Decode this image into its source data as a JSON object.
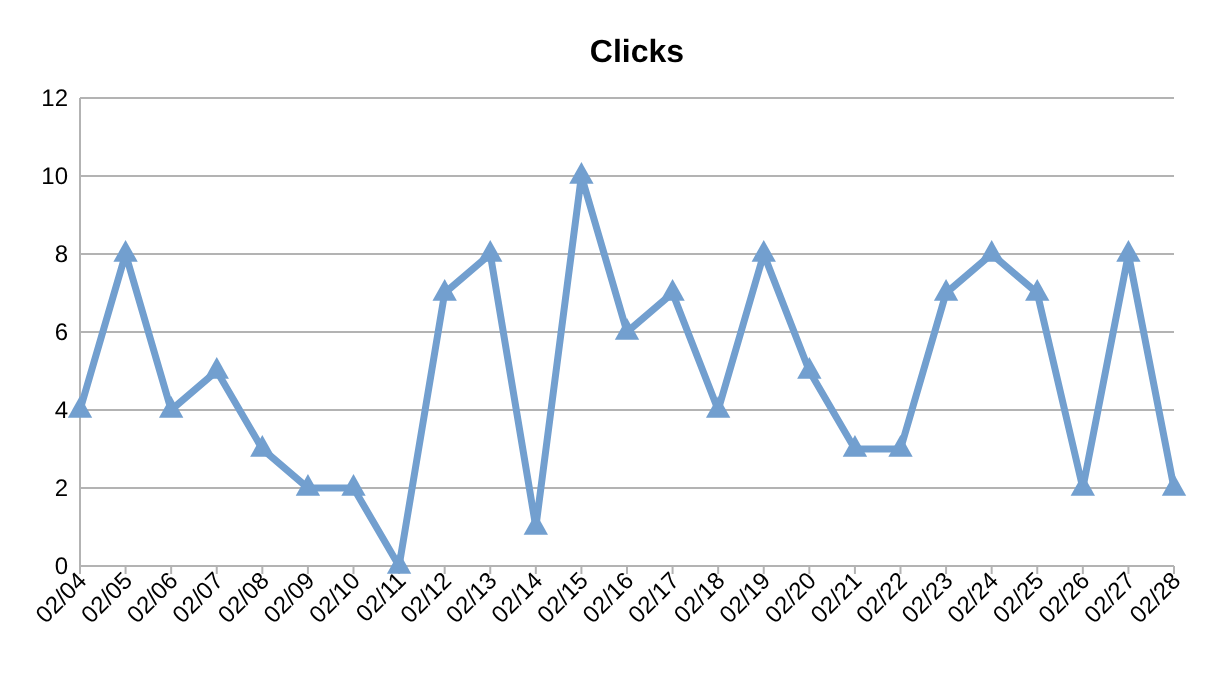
{
  "chart_data": {
    "type": "line",
    "title": "Clicks",
    "categories": [
      "02/04",
      "02/05",
      "02/06",
      "02/07",
      "02/08",
      "02/09",
      "02/10",
      "02/11",
      "02/12",
      "02/13",
      "02/14",
      "02/15",
      "02/16",
      "02/17",
      "02/18",
      "02/19",
      "02/20",
      "02/21",
      "02/22",
      "02/23",
      "02/24",
      "02/25",
      "02/26",
      "02/27",
      "02/28"
    ],
    "values": [
      4,
      8,
      4,
      5,
      3,
      2,
      2,
      0,
      7,
      8,
      1,
      10,
      6,
      7,
      4,
      8,
      5,
      3,
      3,
      7,
      8,
      7,
      2,
      8,
      2
    ],
    "color": "#729fcf",
    "ylim": [
      0,
      12
    ],
    "yticks": [
      0,
      2,
      4,
      6,
      8,
      10,
      12
    ],
    "grid": "y",
    "marker": "triangle",
    "line_style": "solid"
  }
}
